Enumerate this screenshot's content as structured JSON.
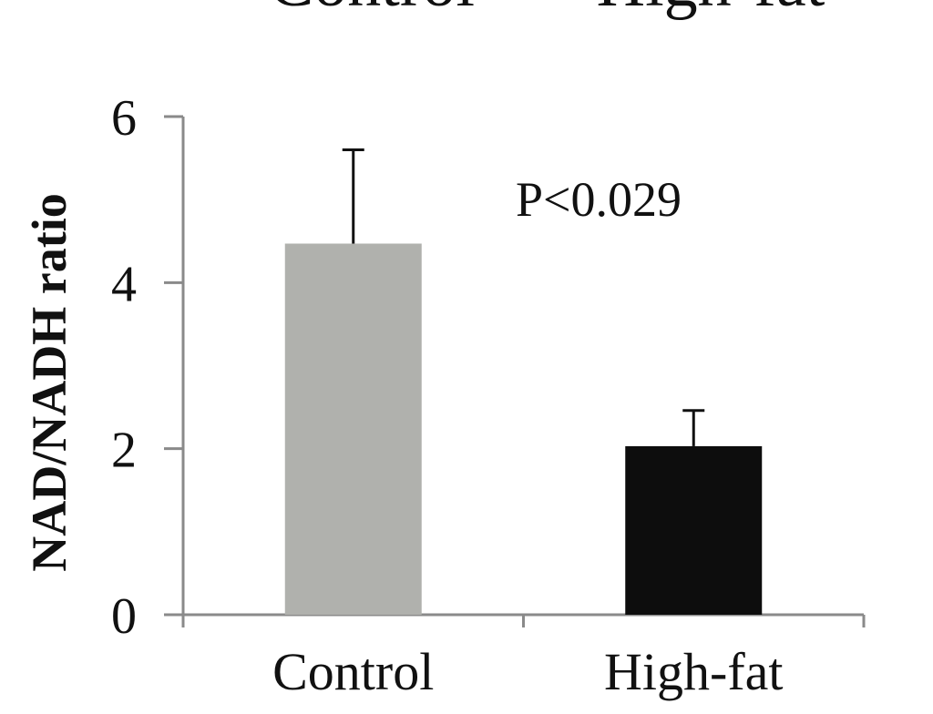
{
  "cut_off_labels": [
    "Control",
    "High-fat"
  ],
  "chart_data": {
    "type": "bar",
    "categories": [
      "Control",
      "High-fat"
    ],
    "values": [
      4.47,
      2.03
    ],
    "error_bars": [
      1.13,
      0.43
    ],
    "bar_colors": [
      "#b0b1ad",
      "#0d0d0d"
    ],
    "title": "",
    "xlabel": "",
    "ylabel": "NAD/NADH ratio",
    "ylim": [
      0,
      6
    ],
    "yticks": [
      0,
      2,
      4,
      6
    ],
    "grid": false,
    "annotations": [
      "P<0.029"
    ]
  }
}
